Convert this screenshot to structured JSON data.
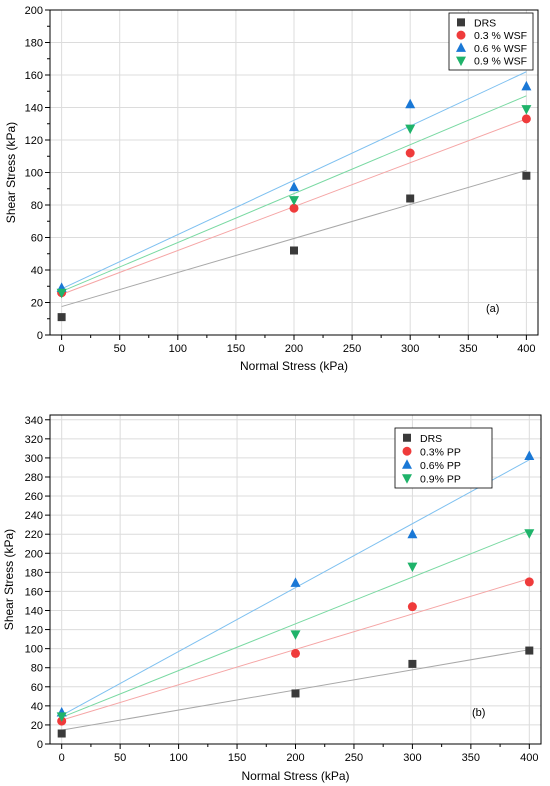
{
  "chart_data": [
    {
      "type": "scatter",
      "panel_label": "(a)",
      "xlabel": "Normal Stress (kPa)",
      "ylabel": "Shear Stress (kPa)",
      "xlim": [
        -10,
        410
      ],
      "ylim": [
        0,
        200
      ],
      "xticks": [
        0,
        50,
        100,
        150,
        200,
        250,
        300,
        350,
        400
      ],
      "yticks": [
        0,
        20,
        40,
        60,
        80,
        100,
        120,
        140,
        160,
        180,
        200
      ],
      "legend_position": "top-right",
      "grid": true,
      "x": [
        0,
        200,
        300,
        400
      ],
      "series": [
        {
          "name": "DRS",
          "marker": "square",
          "color": "#3a3a3a",
          "line_color": "#a8a8a8",
          "values": [
            11,
            52,
            84,
            98
          ],
          "fit": [
            17.5,
            0.2095
          ]
        },
        {
          "name": "0.3 % WSF",
          "marker": "circle",
          "color": "#ef3b3b",
          "line_color": "#f5a5a5",
          "values": [
            26,
            78,
            112,
            133
          ],
          "fit": [
            25,
            0.27
          ]
        },
        {
          "name": "0.6 % WSF",
          "marker": "triangle-up",
          "color": "#1a78d6",
          "line_color": "#7ec0f0",
          "values": [
            29,
            91,
            142,
            153
          ],
          "fit": [
            28.4,
            0.334
          ]
        },
        {
          "name": "0.9 % WSF",
          "marker": "triangle-down",
          "color": "#1fb36a",
          "line_color": "#79d9a2",
          "values": [
            26,
            83,
            127,
            139
          ],
          "fit": [
            26.8,
            0.301
          ]
        }
      ]
    },
    {
      "type": "scatter",
      "panel_label": "(b)",
      "xlabel": "Normal Stress (kPa)",
      "ylabel": "Shear Stress (kPa)",
      "xlim": [
        -10,
        410
      ],
      "ylim": [
        0,
        345
      ],
      "xticks": [
        0,
        50,
        100,
        150,
        200,
        250,
        300,
        350,
        400
      ],
      "yticks": [
        0,
        20,
        40,
        60,
        80,
        100,
        120,
        140,
        160,
        180,
        200,
        220,
        240,
        260,
        280,
        300,
        320,
        340
      ],
      "legend_position": "top-right",
      "grid": true,
      "x": [
        0,
        200,
        300,
        400
      ],
      "series": [
        {
          "name": "DRS",
          "marker": "square",
          "color": "#3a3a3a",
          "line_color": "#a8a8a8",
          "values": [
            11,
            53,
            84,
            98
          ],
          "fit": [
            14.5,
            0.211
          ]
        },
        {
          "name": "0.3% PP",
          "marker": "circle",
          "color": "#ef3b3b",
          "line_color": "#f5a5a5",
          "values": [
            24,
            95,
            144,
            170
          ],
          "fit": [
            25,
            0.371
          ]
        },
        {
          "name": "0.6% PP",
          "marker": "triangle-up",
          "color": "#1a78d6",
          "line_color": "#7ec0f0",
          "values": [
            33,
            169,
            220,
            302
          ],
          "fit": [
            30,
            0.67
          ]
        },
        {
          "name": "0.9% PP",
          "marker": "triangle-down",
          "color": "#1fb36a",
          "line_color": "#79d9a2",
          "values": [
            29,
            115,
            186,
            221
          ],
          "fit": [
            28,
            0.49
          ]
        }
      ]
    }
  ]
}
